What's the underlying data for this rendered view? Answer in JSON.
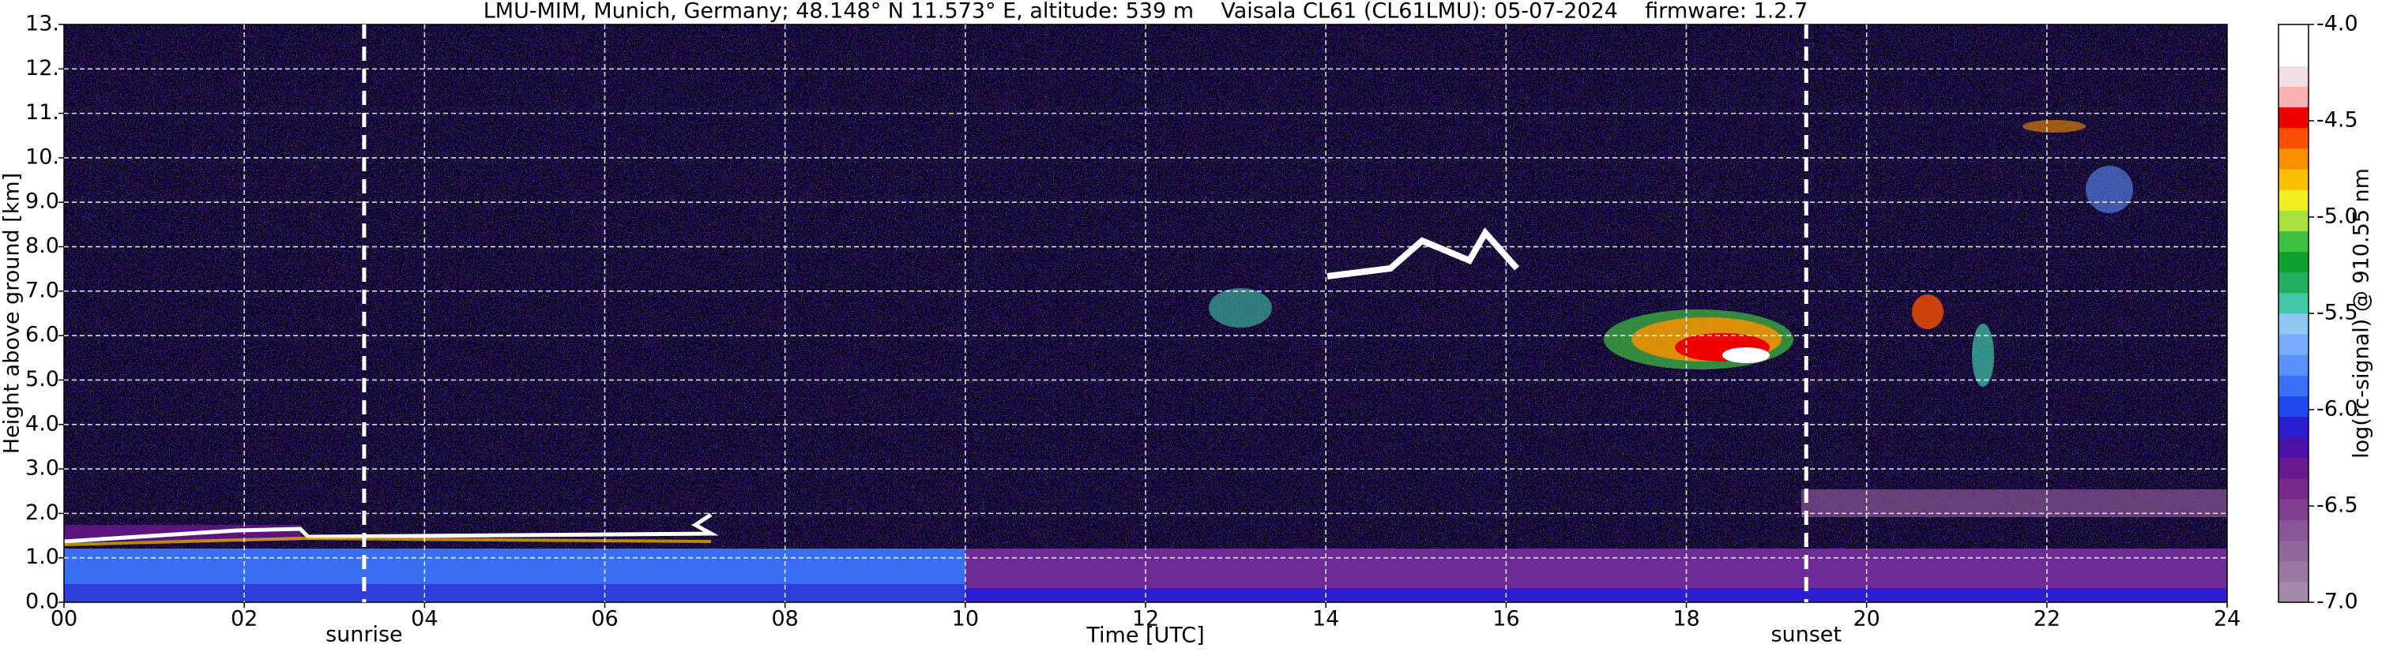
{
  "chart_data": {
    "type": "heatmap",
    "title": "LMU-MIM, Munich, Germany; 48.148° N 11.573° E, altitude: 539 m    Vaisala CL61 (CL61LMU): 05-07-2024    firmware: 1.2.7",
    "xlabel": "Time [UTC]",
    "ylabel": "Height above ground [km]",
    "xlim": [
      0,
      24
    ],
    "xticks": [
      {
        "value": 0,
        "label": "00"
      },
      {
        "value": 2,
        "label": "02"
      },
      {
        "value": 4,
        "label": "04"
      },
      {
        "value": 6,
        "label": "06"
      },
      {
        "value": 8,
        "label": "08"
      },
      {
        "value": 10,
        "label": "10"
      },
      {
        "value": 12,
        "label": "12"
      },
      {
        "value": 14,
        "label": "14"
      },
      {
        "value": 16,
        "label": "16"
      },
      {
        "value": 18,
        "label": "18"
      },
      {
        "value": 20,
        "label": "20"
      },
      {
        "value": 22,
        "label": "22"
      },
      {
        "value": 24,
        "label": "24"
      }
    ],
    "ylim": [
      0,
      13
    ],
    "yticks": [
      {
        "value": 0,
        "label": "0.0"
      },
      {
        "value": 1,
        "label": "1.0"
      },
      {
        "value": 2,
        "label": "2.0"
      },
      {
        "value": 3,
        "label": "3.0"
      },
      {
        "value": 4,
        "label": "4.0"
      },
      {
        "value": 5,
        "label": "5.0"
      },
      {
        "value": 6,
        "label": "6.0"
      },
      {
        "value": 7,
        "label": "7.0"
      },
      {
        "value": 8,
        "label": "8.0"
      },
      {
        "value": 9,
        "label": "9.0"
      },
      {
        "value": 10,
        "label": "10."
      },
      {
        "value": 11,
        "label": "11."
      },
      {
        "value": 12,
        "label": "12."
      },
      {
        "value": 13,
        "label": "13."
      }
    ],
    "grid": true,
    "annotations": [
      {
        "text": "sunrise",
        "x": 3.33
      },
      {
        "text": "sunset",
        "x": 19.33
      }
    ],
    "colorbar": {
      "label": "log(rc-signal) @ 910.55 nm",
      "lim": [
        -7,
        -4
      ],
      "ticks": [
        {
          "value": -4,
          "label": "-4.0"
        },
        {
          "value": -4.5,
          "label": "-4.5"
        },
        {
          "value": -5,
          "label": "-5.0"
        },
        {
          "value": -5.5,
          "label": "-5.5"
        },
        {
          "value": -6,
          "label": "-6.0"
        },
        {
          "value": -6.5,
          "label": "-6.5"
        },
        {
          "value": -7,
          "label": "-7.0"
        }
      ],
      "colors": [
        "#a38aa8",
        "#9a7aa2",
        "#92689c",
        "#8a5596",
        "#81408f",
        "#782b8b",
        "#6a1890",
        "#4a10a8",
        "#2a1ed0",
        "#2048f0",
        "#3a70f8",
        "#5a90fa",
        "#7aaefc",
        "#8fc8f0",
        "#40c8a8",
        "#20b060",
        "#10a030",
        "#40c040",
        "#a8e040",
        "#f0f020",
        "#f8c000",
        "#f89000",
        "#f85000",
        "#f00000",
        "#f8b0b0",
        "#f0e0e6",
        "#ffffff",
        "#ffffff"
      ]
    }
  }
}
